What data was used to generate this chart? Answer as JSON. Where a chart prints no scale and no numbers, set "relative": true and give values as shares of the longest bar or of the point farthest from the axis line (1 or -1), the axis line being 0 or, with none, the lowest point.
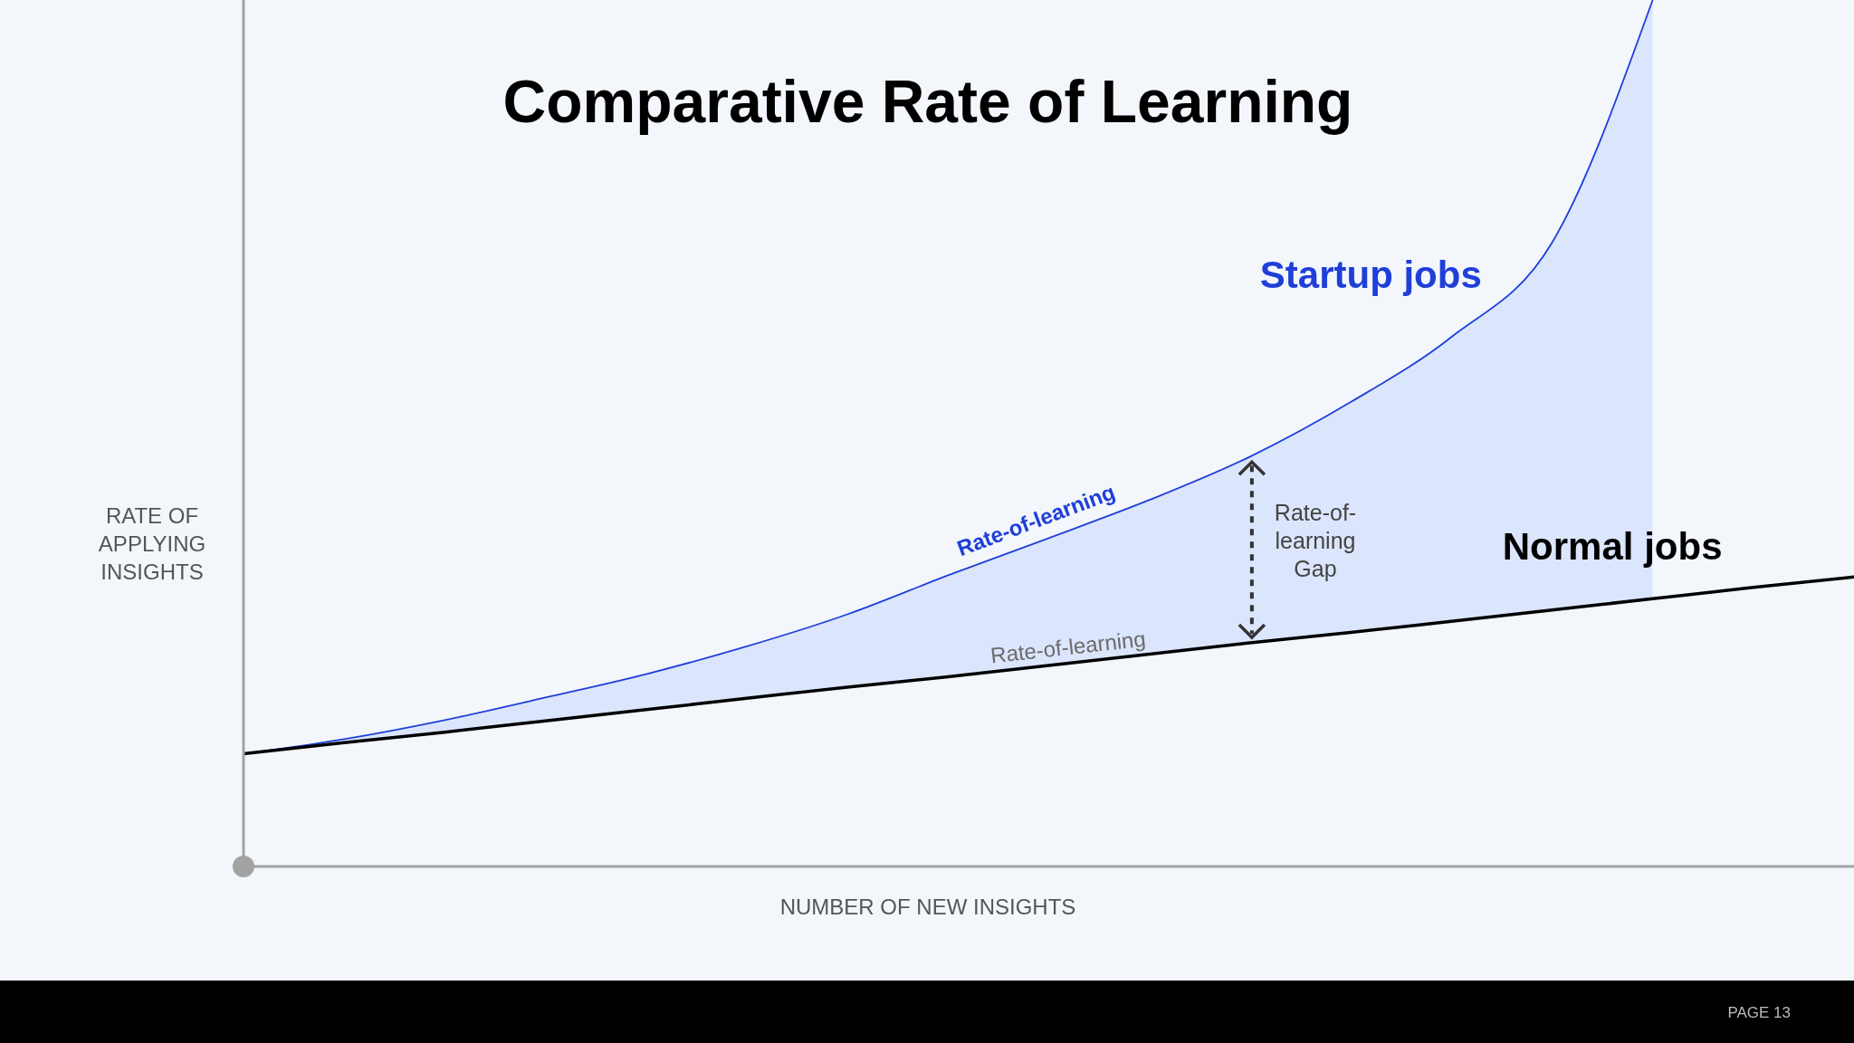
{
  "chart_data": {
    "type": "line",
    "title": "Comparative Rate of Learning",
    "xlabel": "NUMBER OF NEW INSIGHTS",
    "ylabel": "RATE OF APPLYING INSIGHTS",
    "relative": true,
    "categories": [
      null,
      null,
      null,
      null,
      null,
      null,
      null,
      null,
      null,
      null,
      null,
      null,
      null,
      null,
      null,
      null,
      null
    ],
    "series": [
      {
        "name": "Startup jobs",
        "color": "#1f3fd8",
        "values": [
          0.13,
          0.147,
          0.169,
          0.195,
          0.222,
          0.254,
          0.291,
          0.336,
          0.379,
          0.423,
          0.473,
          0.536,
          0.611,
          0.72,
          1,
          null,
          null
        ],
        "lower": [
          0.13,
          0.143,
          0.155,
          0.168,
          0.181,
          0.194,
          0.207,
          0.219,
          0.232,
          0.245,
          0.258,
          0.27,
          0.283,
          0.296,
          0.309,
          null,
          null
        ],
        "upper": [
          0.13,
          0.147,
          0.169,
          0.195,
          0.222,
          0.254,
          0.291,
          0.336,
          0.379,
          0.423,
          0.473,
          0.536,
          0.611,
          0.72,
          1,
          null,
          null
        ]
      },
      {
        "name": "Normal jobs",
        "color": "#000000",
        "values": [
          0.13,
          0.143,
          0.155,
          0.168,
          0.181,
          0.194,
          0.207,
          0.219,
          0.232,
          0.245,
          0.258,
          0.27,
          0.283,
          0.296,
          0.309,
          0.322,
          0.334
        ]
      }
    ],
    "annotations": [
      "Rate-of-learning",
      "Rate-of-learning",
      "Rate-of-learning Gap",
      "PAGE 13"
    ]
  }
}
